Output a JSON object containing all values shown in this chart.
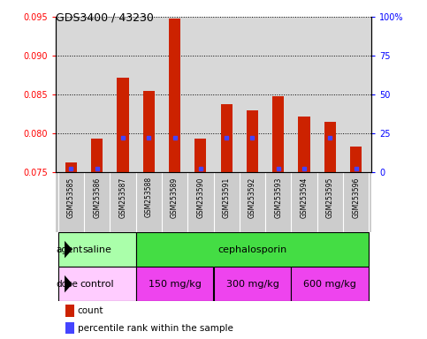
{
  "title": "GDS3400 / 43230",
  "samples": [
    "GSM253585",
    "GSM253586",
    "GSM253587",
    "GSM253588",
    "GSM253589",
    "GSM253590",
    "GSM253591",
    "GSM253592",
    "GSM253593",
    "GSM253594",
    "GSM253595",
    "GSM253596"
  ],
  "counts": [
    0.0762,
    0.0793,
    0.0872,
    0.0855,
    0.0948,
    0.0793,
    0.0838,
    0.083,
    0.0848,
    0.0822,
    0.0815,
    0.0783
  ],
  "percentiles": [
    2,
    2,
    22,
    22,
    22,
    2,
    22,
    22,
    2,
    2,
    22,
    2
  ],
  "ylim_left": [
    0.075,
    0.095
  ],
  "ylim_right": [
    0,
    100
  ],
  "yticks_left": [
    0.075,
    0.08,
    0.085,
    0.09,
    0.095
  ],
  "yticks_right": [
    0,
    25,
    50,
    75,
    100
  ],
  "bar_color": "#cc2200",
  "percentile_color": "#4444ff",
  "plot_bg_color": "#d8d8d8",
  "agent_groups": [
    {
      "label": "saline",
      "start": 0,
      "end": 3,
      "color": "#aaffaa"
    },
    {
      "label": "cephalosporin",
      "start": 3,
      "end": 12,
      "color": "#44dd44"
    }
  ],
  "dose_groups": [
    {
      "label": "control",
      "start": 0,
      "end": 3,
      "color": "#ffccff"
    },
    {
      "label": "150 mg/kg",
      "start": 3,
      "end": 6,
      "color": "#ee44ee"
    },
    {
      "label": "300 mg/kg",
      "start": 6,
      "end": 9,
      "color": "#ee44ee"
    },
    {
      "label": "600 mg/kg",
      "start": 9,
      "end": 12,
      "color": "#ee44ee"
    }
  ],
  "legend_count_color": "#cc2200",
  "legend_pct_color": "#4444ff",
  "base_value": 0.075,
  "grid_color": "#000000",
  "tick_fontsize": 7,
  "bar_width": 0.45,
  "saline_color": "#aaffaa",
  "cephalo_color": "#44dd44",
  "control_color": "#ffccff",
  "dose_color": "#ee44ee",
  "xtick_bg": "#cccccc"
}
